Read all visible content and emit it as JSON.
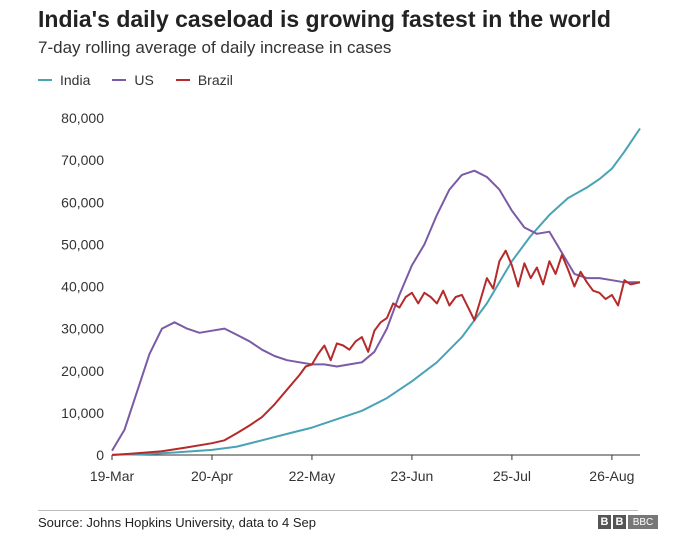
{
  "chart_data": {
    "type": "line",
    "title": "India's daily caseload is growing fastest in the world",
    "subtitle": "7-day rolling average of daily increase in cases",
    "xlabel": "",
    "ylabel": "",
    "ylim": [
      0,
      80000
    ],
    "yticks": [
      "0",
      "10,000",
      "20,000",
      "30,000",
      "40,000",
      "50,000",
      "60,000",
      "70,000",
      "80,000"
    ],
    "ytick_values": [
      0,
      10000,
      20000,
      30000,
      40000,
      50000,
      60000,
      70000,
      80000
    ],
    "xticks": [
      "19-Mar",
      "20-Apr",
      "22-May",
      "23-Jun",
      "25-Jul",
      "26-Aug"
    ],
    "xtick_days": [
      0,
      32,
      64,
      96,
      128,
      160
    ],
    "xlim": [
      0,
      169
    ],
    "grid": false,
    "legend_position": "top-left",
    "series": [
      {
        "name": "India",
        "color": "#4aa3b5",
        "x": [
          0,
          10,
          20,
          32,
          40,
          48,
          56,
          64,
          72,
          80,
          88,
          96,
          104,
          112,
          120,
          128,
          134,
          140,
          146,
          152,
          156,
          160,
          164,
          169
        ],
        "y": [
          50,
          200,
          600,
          1200,
          2000,
          3500,
          5000,
          6500,
          8500,
          10500,
          13500,
          17500,
          22000,
          28000,
          36000,
          46000,
          52000,
          57000,
          61000,
          63500,
          65500,
          68000,
          72000,
          77500
        ]
      },
      {
        "name": "US",
        "color": "#7b5aa6",
        "x": [
          0,
          4,
          8,
          12,
          16,
          20,
          24,
          28,
          32,
          36,
          40,
          44,
          48,
          52,
          56,
          60,
          64,
          68,
          72,
          76,
          80,
          84,
          88,
          92,
          96,
          100,
          104,
          108,
          112,
          116,
          120,
          124,
          128,
          132,
          136,
          140,
          144,
          148,
          152,
          156,
          160,
          164,
          169
        ],
        "y": [
          1000,
          6000,
          15000,
          24000,
          30000,
          31500,
          30000,
          29000,
          29500,
          30000,
          28500,
          27000,
          25000,
          23500,
          22500,
          22000,
          21500,
          21500,
          21000,
          21500,
          22000,
          24500,
          30000,
          38000,
          45000,
          50000,
          57000,
          63000,
          66500,
          67500,
          66000,
          63000,
          58000,
          54000,
          52500,
          53000,
          48000,
          43000,
          42000,
          42000,
          41500,
          41000,
          41000
        ]
      },
      {
        "name": "Brazil",
        "color": "#b52a2a",
        "x": [
          0,
          8,
          16,
          24,
          32,
          36,
          40,
          44,
          48,
          52,
          56,
          60,
          62,
          64,
          66,
          68,
          70,
          72,
          74,
          76,
          78,
          80,
          82,
          84,
          86,
          88,
          90,
          92,
          94,
          96,
          98,
          100,
          102,
          104,
          106,
          108,
          110,
          112,
          114,
          116,
          118,
          120,
          122,
          124,
          126,
          128,
          130,
          132,
          134,
          136,
          138,
          140,
          142,
          144,
          146,
          148,
          150,
          152,
          154,
          156,
          158,
          160,
          162,
          164,
          166,
          169
        ],
        "y": [
          0,
          400,
          900,
          1800,
          2800,
          3500,
          5200,
          7000,
          9000,
          12000,
          15500,
          19000,
          21000,
          21500,
          24000,
          26000,
          22500,
          26500,
          26000,
          25000,
          27000,
          28000,
          24500,
          29500,
          31500,
          32500,
          36000,
          35000,
          37500,
          38500,
          36000,
          38500,
          37500,
          36000,
          39000,
          35500,
          37500,
          38000,
          35000,
          32000,
          37000,
          42000,
          39500,
          46000,
          48500,
          45000,
          40000,
          45500,
          42000,
          44500,
          40500,
          46000,
          43000,
          47500,
          44000,
          40000,
          43500,
          41000,
          39000,
          38500,
          37000,
          38000,
          35500,
          41500,
          40500,
          41000
        ]
      }
    ]
  },
  "legend": {
    "items": [
      {
        "label": "India",
        "color": "#4aa3b5"
      },
      {
        "label": "US",
        "color": "#7b5aa6"
      },
      {
        "label": "Brazil",
        "color": "#b52a2a"
      }
    ]
  },
  "footer": {
    "source": "Source: Johns Hopkins University, data to 4 Sep",
    "logo_letters": [
      "B",
      "B"
    ],
    "logo_text": "BBC"
  }
}
